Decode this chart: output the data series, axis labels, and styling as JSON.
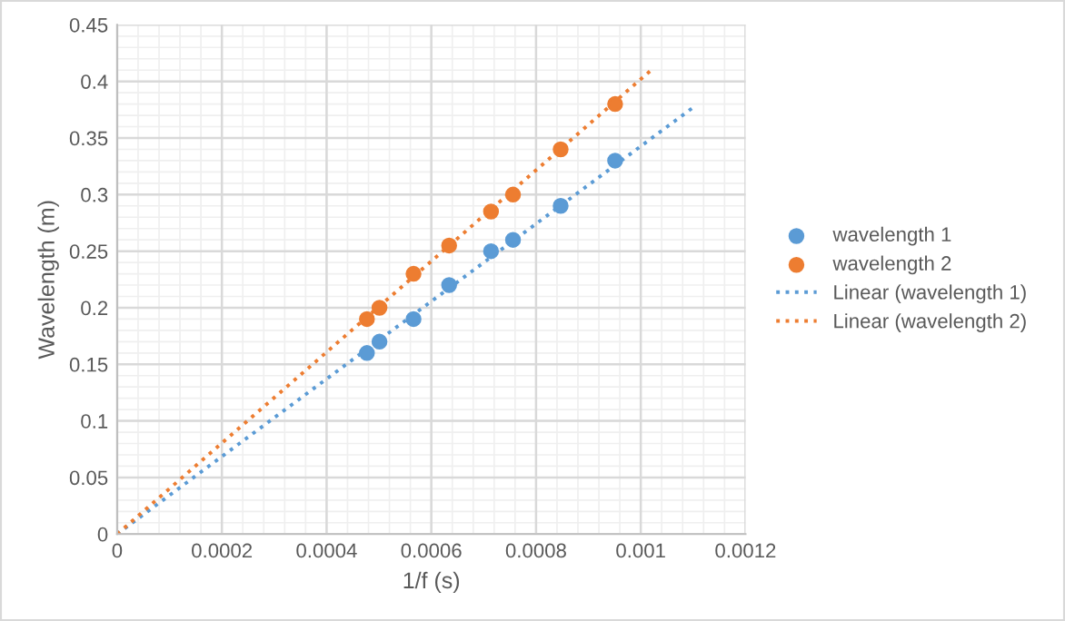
{
  "chart_data": {
    "type": "scatter",
    "xlabel": "1/f (s)",
    "ylabel": "Wavelength (m)",
    "xlim": [
      0,
      0.0012
    ],
    "ylim": [
      0,
      0.45
    ],
    "xticks": [
      0,
      0.0002,
      0.0004,
      0.0006,
      0.0008,
      0.001,
      0.0012
    ],
    "yticks": [
      0,
      0.05,
      0.1,
      0.15,
      0.2,
      0.25,
      0.3,
      0.35,
      0.4,
      0.45
    ],
    "grid": true,
    "legend": "right",
    "marker": "circle",
    "series": [
      {
        "name": "wavelength 1",
        "color": "#5b9bd5",
        "x": [
          0.000477,
          0.000501,
          0.000566,
          0.000634,
          0.000714,
          0.000756,
          0.000847,
          0.000951
        ],
        "values": [
          0.16,
          0.17,
          0.19,
          0.22,
          0.25,
          0.26,
          0.29,
          0.33
        ]
      },
      {
        "name": "wavelength 2",
        "color": "#ed7d31",
        "x": [
          0.000477,
          0.000501,
          0.000566,
          0.000634,
          0.000714,
          0.000756,
          0.000847,
          0.000951
        ],
        "values": [
          0.19,
          0.2,
          0.23,
          0.255,
          0.285,
          0.3,
          0.34,
          0.38
        ]
      },
      {
        "name": "Linear (wavelength 1)",
        "type": "line",
        "line_style": "dotted",
        "marker": "none",
        "color": "#5b9bd5",
        "x": [
          0,
          0.0011
        ],
        "values": [
          0,
          0.377
        ]
      },
      {
        "name": "Linear (wavelength 2)",
        "type": "line",
        "line_style": "dotted",
        "marker": "none",
        "color": "#ed7d31",
        "x": [
          0,
          0.00102
        ],
        "values": [
          0,
          0.41
        ]
      }
    ]
  }
}
